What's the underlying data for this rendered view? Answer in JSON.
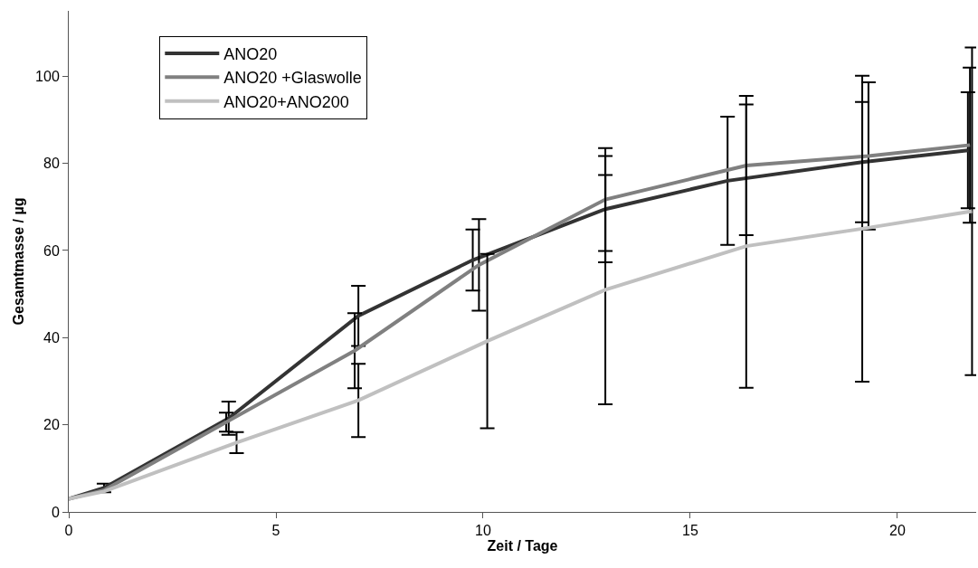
{
  "chart_data": {
    "type": "line",
    "xlabel": "Zeit / Tage",
    "ylabel": "Gesamtmasse / µg",
    "xlim": [
      0,
      21.9
    ],
    "xticks": [
      0,
      5,
      10,
      15,
      20
    ],
    "ylim": [
      0,
      115
    ],
    "yticks": [
      0,
      20,
      40,
      60,
      80,
      100
    ],
    "grid": false,
    "legend": "top left",
    "marker": "none",
    "line_style": "solid",
    "series": [
      {
        "name": "ANO20",
        "color": "#333333",
        "x": [
          0,
          0.85,
          3.86,
          6.99,
          9.75,
          12.95,
          15.9,
          19.15,
          21.7
        ],
        "values": [
          3,
          5.5,
          21.5,
          45,
          57.8,
          69.5,
          76,
          80.3,
          83
        ],
        "errors": [
          null,
          1,
          3.8,
          6.9,
          7,
          12.2,
          14.7,
          13.8,
          13.3
        ]
      },
      {
        "name": "ANO20 +Glaswolle",
        "color": "#808080",
        "x": [
          0,
          0.85,
          3.8,
          6.9,
          9.9,
          12.95,
          16.35,
          19.3,
          21.75
        ],
        "values": [
          3,
          5,
          20.6,
          37,
          56.7,
          71.7,
          79.5,
          81.7,
          84.2
        ],
        "errors": [
          null,
          null,
          2.2,
          8.6,
          10.5,
          11.8,
          16,
          16.9,
          17.8
        ]
      },
      {
        "name": "ANO20+ANO200",
        "color": "#c0c0c0",
        "x": [
          0,
          0.85,
          4.05,
          6.99,
          10.1,
          12.95,
          16.35,
          19.15,
          21.8
        ],
        "values": [
          3,
          4.7,
          15.9,
          25.6,
          39.2,
          51,
          61,
          65,
          69
        ],
        "errors": [
          null,
          null,
          2.4,
          8.4,
          20,
          26.3,
          32.5,
          35.1,
          37.6
        ]
      }
    ]
  }
}
